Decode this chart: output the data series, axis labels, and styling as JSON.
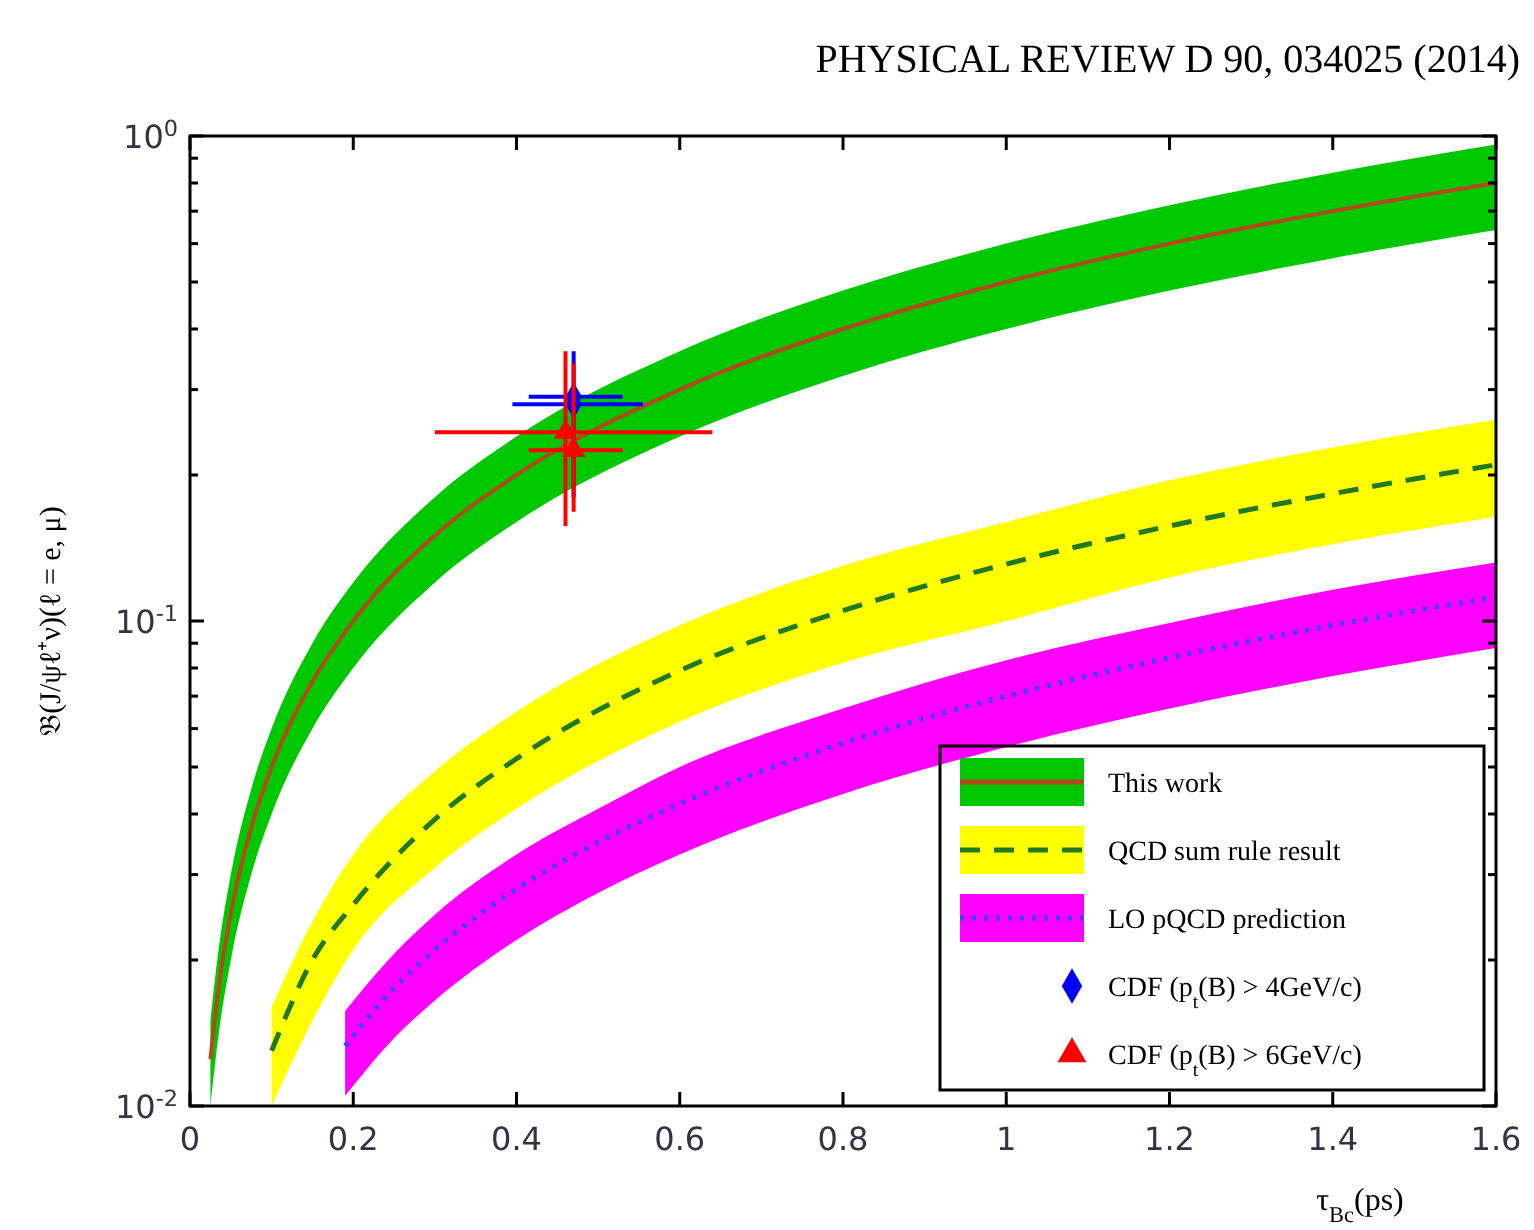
{
  "chart_data": {
    "type": "line",
    "annotations": [
      "PHYSICAL REVIEW D 90, 034025 (2014)"
    ],
    "xlabel": "τ$_{Bc}$(ps)",
    "ylabel": "𝔅(J/ψℓ⁺ν)(ℓ = e, μ)",
    "log": "y",
    "grid": false,
    "legend": "bottom right",
    "xlim": [
      0,
      1.6
    ],
    "xticks": [
      0,
      0.2,
      0.4,
      0.6,
      0.8,
      1,
      1.2,
      1.4,
      1.6
    ],
    "ylim": [
      0.01,
      1
    ],
    "yticks": [
      {
        "value": 0.01,
        "label": "10$^{-2}$"
      },
      {
        "value": 0.02,
        "label": null
      },
      {
        "value": 0.03,
        "label": null
      },
      {
        "value": 0.04,
        "label": null
      },
      {
        "value": 0.05,
        "label": null
      },
      {
        "value": 0.06,
        "label": null
      },
      {
        "value": 0.07,
        "label": null
      },
      {
        "value": 0.08,
        "label": null
      },
      {
        "value": 0.09,
        "label": null
      },
      {
        "value": 0.1,
        "label": "10$^{-1}$"
      },
      {
        "value": 0.2,
        "label": null
      },
      {
        "value": 0.3,
        "label": null
      },
      {
        "value": 0.4,
        "label": null
      },
      {
        "value": 0.5,
        "label": null
      },
      {
        "value": 0.6,
        "label": null
      },
      {
        "value": 0.7,
        "label": null
      },
      {
        "value": 0.8,
        "label": null
      },
      {
        "value": 0.9,
        "label": null
      },
      {
        "value": 1,
        "label": "10$^{0}$"
      }
    ],
    "series": [
      {
        "name": "This work",
        "color": "#b04a1c",
        "colors": [
          "#00c800",
          "#00c800",
          "#00c800",
          "#00c800",
          "#00c800",
          "#00c800",
          "#00c800",
          "#00c800",
          "#00c800",
          "#00c800",
          "#00c800",
          "#00c800",
          "#00c800",
          "#00c800",
          "#00c800"
        ],
        "marker": "none",
        "line_style": "solid",
        "x": [
          0.025,
          0.035,
          0.05,
          0.075,
          0.1,
          0.15,
          0.2,
          0.3,
          0.4,
          0.6,
          0.8,
          1.0,
          1.2,
          1.4,
          1.6
        ],
        "values": [
          0.0125,
          0.0175,
          0.025,
          0.0375,
          0.05,
          0.075,
          0.1,
          0.15,
          0.2,
          0.3,
          0.4,
          0.5,
          0.6,
          0.7,
          0.8
        ],
        "lower": [
          0.01,
          0.014,
          0.02,
          0.03,
          0.04,
          0.06,
          0.08,
          0.12,
          0.16,
          0.24,
          0.32,
          0.4,
          0.48,
          0.56,
          0.64
        ],
        "upper": [
          0.015,
          0.021,
          0.03,
          0.045,
          0.06,
          0.09,
          0.12,
          0.18,
          0.24,
          0.36,
          0.48,
          0.6,
          0.72,
          0.84,
          0.96
        ]
      },
      {
        "name": "QCD sum rule result",
        "color": "#1f7a1f",
        "colors": [
          "#ffff00",
          "#ffff00",
          "#ffff00",
          "#ffff00",
          "#ffff00",
          "#ffff00",
          "#ffff00",
          "#ffff00",
          "#ffff00",
          "#ffff00",
          "#ffff00"
        ],
        "marker": "none",
        "line_style": "dashed",
        "x": [
          0.1,
          0.15,
          0.2,
          0.3,
          0.4,
          0.6,
          0.8,
          1.0,
          1.2,
          1.4,
          1.6
        ],
        "values": [
          0.013,
          0.02,
          0.026,
          0.039,
          0.052,
          0.079,
          0.105,
          0.131,
          0.157,
          0.183,
          0.21
        ],
        "lower": [
          0.01,
          0.015,
          0.021,
          0.031,
          0.041,
          0.062,
          0.082,
          0.1,
          0.123,
          0.144,
          0.164
        ],
        "upper": [
          0.016,
          0.024,
          0.033,
          0.049,
          0.065,
          0.098,
          0.13,
          0.16,
          0.195,
          0.228,
          0.26
        ]
      },
      {
        "name": "LO pQCD prediction",
        "color": "#4040ff",
        "colors": [
          "#ff00ff",
          "#ff00ff",
          "#ff00ff",
          "#ff00ff",
          "#ff00ff",
          "#ff00ff",
          "#ff00ff",
          "#ff00ff",
          "#ff00ff",
          "#ff00ff",
          "#ff00ff"
        ],
        "marker": "none",
        "line_style": "dotted",
        "x": [
          0.19,
          0.25,
          0.3,
          0.4,
          0.5,
          0.6,
          0.8,
          1.0,
          1.2,
          1.4,
          1.6
        ],
        "values": [
          0.0133,
          0.0175,
          0.021,
          0.028,
          0.035,
          0.042,
          0.056,
          0.07,
          0.084,
          0.098,
          0.112
        ],
        "lower": [
          0.0105,
          0.0138,
          0.0165,
          0.022,
          0.0275,
          0.033,
          0.044,
          0.055,
          0.066,
          0.077,
          0.088
        ],
        "upper": [
          0.0157,
          0.0206,
          0.0248,
          0.033,
          0.041,
          0.05,
          0.066,
          0.083,
          0.099,
          0.116,
          0.132
        ]
      },
      {
        "name": "CDF (p$_{t}$(B) > 4GeV/c)",
        "type": "scatter",
        "color": "#0000ff",
        "marker": "diamond",
        "x": [
          0.47,
          0.47
        ],
        "values": [
          0.28,
          0.29
        ],
        "errors": [
          [
            0.18,
            0.36
          ],
          null
        ],
        "xerrors": [
          [
            0.395,
            0.555
          ],
          [
            0.415,
            0.53
          ]
        ]
      },
      {
        "name": "CDF (p$_{t}$(B) > 6GeV/c)",
        "type": "scatter",
        "color": "#ff0000",
        "marker": "triangle",
        "x": [
          0.46,
          0.47
        ],
        "values": [
          0.245,
          0.225
        ],
        "errors": [
          [
            0.157,
            0.36
          ],
          [
            0.168,
            0.34
          ]
        ],
        "xerrors": [
          [
            0.3,
            0.64
          ],
          [
            0.415,
            0.53
          ]
        ]
      }
    ]
  }
}
